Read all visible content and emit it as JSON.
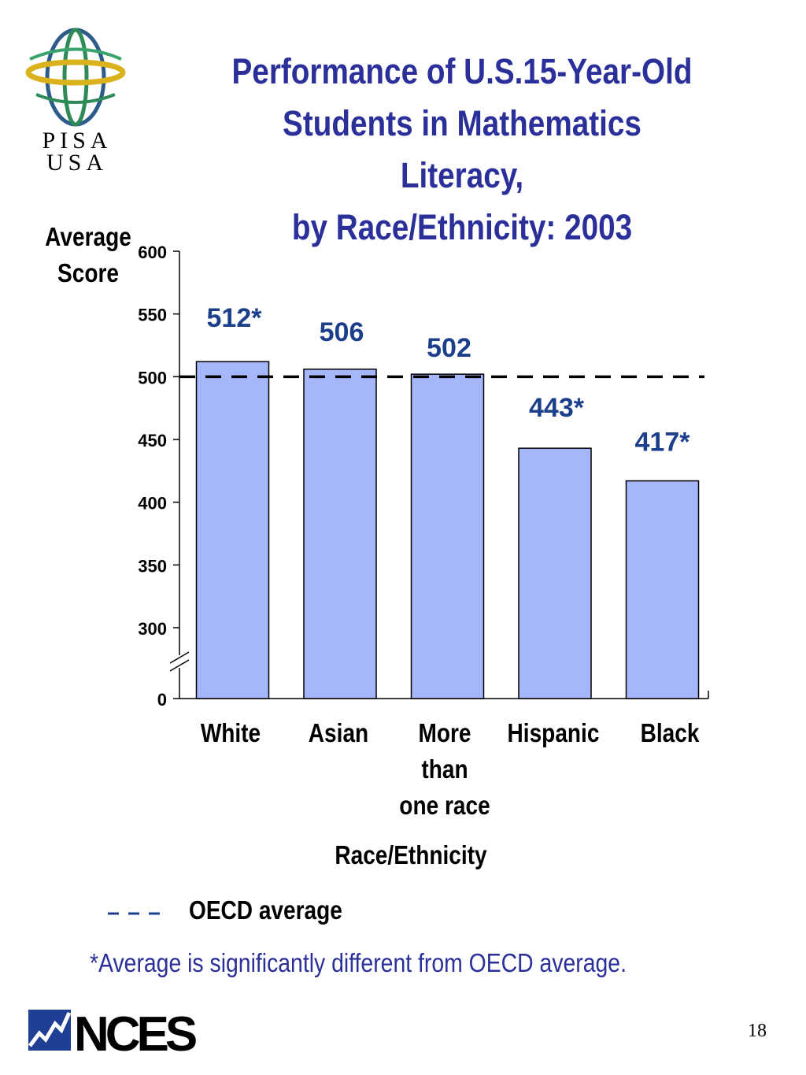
{
  "title": {
    "line1": "Performance of U.S.15-Year-Old",
    "line2": "Students in Mathematics Literacy,",
    "line3": "by Race/Ethnicity:  2003"
  },
  "logo": {
    "word1": "PISA",
    "word2": "USA"
  },
  "chart_data": {
    "type": "bar",
    "title": "Performance of U.S.15-Year-Old Students in Mathematics Literacy, by Race/Ethnicity:  2003",
    "ylabel": [
      "Average",
      "Score"
    ],
    "xlabel": "Race/Ethnicity",
    "categories": [
      "White",
      "Asian",
      "More than one race",
      "Hispanic",
      "Black"
    ],
    "category_lines": [
      [
        "White"
      ],
      [
        "Asian"
      ],
      [
        "More",
        "than",
        "one race"
      ],
      [
        "Hispanic"
      ],
      [
        "Black"
      ]
    ],
    "values": [
      512,
      506,
      502,
      443,
      417
    ],
    "value_labels": [
      "512*",
      "506",
      "502",
      "443*",
      "417*"
    ],
    "yticks": [
      0,
      300,
      350,
      400,
      450,
      500,
      550,
      600
    ],
    "ylim": [
      0,
      600
    ],
    "axis_break": true,
    "reference_line": {
      "label": "OECD average",
      "value": 500,
      "style": "dashed"
    },
    "grid": false,
    "bar_color": "#a6b6fb",
    "label_color": "#1c3f8c"
  },
  "legend": {
    "label": "OECD average"
  },
  "footnote": "*Average is significantly different from OECD average.",
  "footer": {
    "brand": "NCES",
    "page_number": "18"
  },
  "colors": {
    "title": "#2b2f9a",
    "bar": "#a6b6fb",
    "value_label": "#1c3f8c",
    "nces_blue": "#1e3f94"
  }
}
